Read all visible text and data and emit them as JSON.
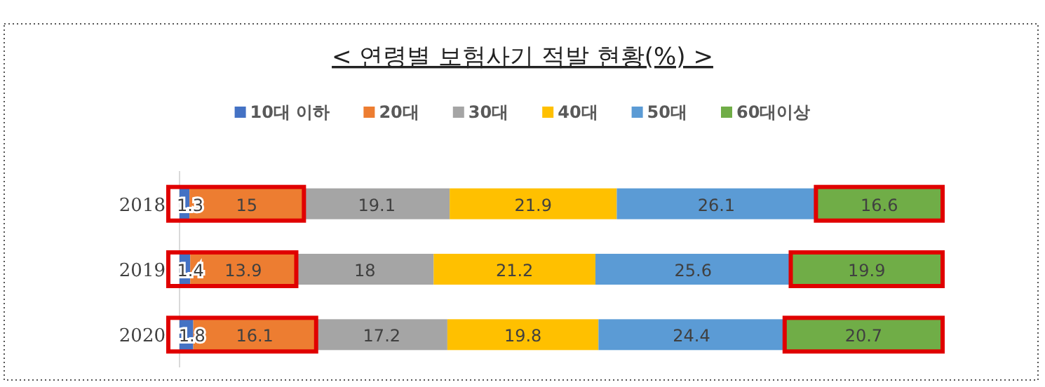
{
  "chart_data": {
    "type": "bar",
    "orientation": "horizontal",
    "stacked": true,
    "data_labels": true,
    "legend": "top",
    "title": "< 연령별 보험사기 적발 현황(%) >",
    "categories": [
      "2018",
      "2019",
      "2020"
    ],
    "series": [
      {
        "name": "10대 이하",
        "color": "#4472c4",
        "values": [
          1.3,
          1.4,
          1.8
        ]
      },
      {
        "name": "20대",
        "color": "#ed7d31",
        "values": [
          15,
          13.9,
          16.1
        ]
      },
      {
        "name": "30대",
        "color": "#a5a5a5",
        "values": [
          19.1,
          18,
          17.2
        ]
      },
      {
        "name": "40대",
        "color": "#ffc000",
        "values": [
          21.9,
          21.2,
          19.8
        ]
      },
      {
        "name": "50대",
        "color": "#5b9bd5",
        "values": [
          26.1,
          25.6,
          24.4
        ]
      },
      {
        "name": "60대이상",
        "color": "#70ad47",
        "values": [
          16.6,
          19.9,
          20.7
        ]
      }
    ]
  }
}
